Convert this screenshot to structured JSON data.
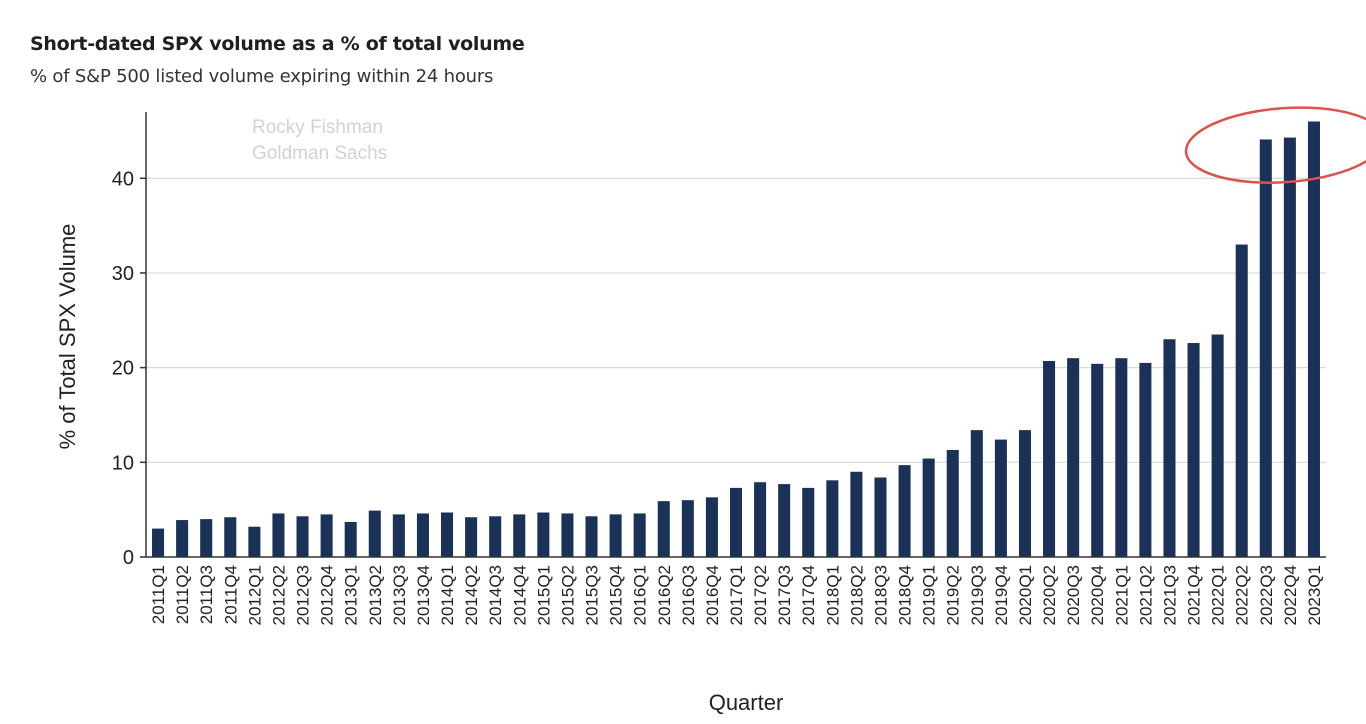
{
  "header": {
    "title": "Short-dated SPX volume as a % of total volume",
    "subtitle": "% of S&P 500 listed volume expiring within 24 hours"
  },
  "watermark": {
    "line1": "Rocky Fishman",
    "line2": "Goldman Sachs"
  },
  "colors": {
    "bar": "#1b3157",
    "grid": "#d9d9d9",
    "highlight": "#d9534f"
  },
  "chart_data": {
    "type": "bar",
    "xlabel": "Quarter",
    "ylabel": "% of Total SPX Volume",
    "ylim": [
      0,
      47
    ],
    "yticks": [
      0,
      10,
      20,
      30,
      40
    ],
    "grid": true,
    "categories": [
      "2011Q1",
      "2011Q2",
      "2011Q3",
      "2011Q4",
      "2012Q1",
      "2012Q2",
      "2012Q3",
      "2012Q4",
      "2013Q1",
      "2013Q2",
      "2013Q3",
      "2013Q4",
      "2014Q1",
      "2014Q2",
      "2014Q3",
      "2014Q4",
      "2015Q1",
      "2015Q2",
      "2015Q3",
      "2015Q4",
      "2016Q1",
      "2016Q2",
      "2016Q3",
      "2016Q4",
      "2017Q1",
      "2017Q2",
      "2017Q3",
      "2017Q4",
      "2018Q1",
      "2018Q2",
      "2018Q3",
      "2018Q4",
      "2019Q1",
      "2019Q2",
      "2019Q3",
      "2019Q4",
      "2020Q1",
      "2020Q2",
      "2020Q3",
      "2020Q4",
      "2021Q1",
      "2021Q2",
      "2021Q3",
      "2021Q4",
      "2022Q1",
      "2022Q2",
      "2022Q3",
      "2022Q4",
      "2023Q1"
    ],
    "values": [
      3.0,
      3.9,
      4.0,
      4.2,
      3.2,
      4.6,
      4.3,
      4.5,
      3.7,
      4.9,
      4.5,
      4.6,
      4.7,
      4.2,
      4.3,
      4.5,
      4.7,
      4.6,
      4.3,
      4.5,
      4.6,
      5.9,
      6.0,
      6.3,
      7.3,
      7.9,
      7.7,
      7.3,
      8.1,
      9.0,
      8.4,
      9.7,
      10.4,
      11.3,
      13.4,
      12.4,
      13.4,
      20.7,
      21.0,
      20.4,
      21.0,
      20.5,
      23.0,
      22.6,
      23.5,
      33.0,
      44.1,
      44.3,
      46.0
    ],
    "annotation": "highlight circle around last three bars"
  }
}
